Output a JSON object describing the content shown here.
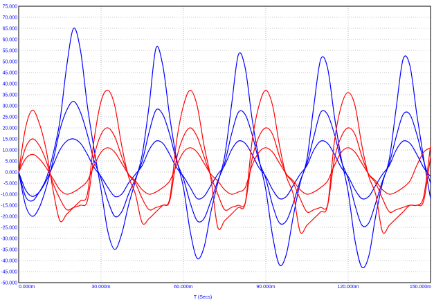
{
  "chart_data": {
    "type": "line",
    "xlabel": "T (Secs)",
    "ylabel": "",
    "xlim": [
      0,
      150
    ],
    "ylim": [
      -50,
      75
    ],
    "x_ticks": [
      "0.000m",
      "30.000m",
      "60.000m",
      "90.000m",
      "120.000m",
      "150.000m"
    ],
    "y_ticks": [
      "75.000",
      "70.000",
      "65.000",
      "60.000",
      "55.000",
      "50.000",
      "45.000",
      "40.000",
      "35.000",
      "30.000",
      "25.000",
      "20.000",
      "15.000",
      "10.000",
      "5.000",
      "0.000",
      "-5.000",
      "-10.000",
      "-15.000",
      "-20.000",
      "-25.000",
      "-30.000",
      "-35.000",
      "-40.000",
      "-45.000",
      "-50.000"
    ],
    "grid": true,
    "colors": {
      "blue": "#0000ff",
      "red": "#ff0000",
      "grid": "#888888",
      "axis": "#0000ff"
    },
    "series": [
      {
        "color": "#0000ff",
        "x": [
          0,
          2.5,
          5,
          7.5,
          10,
          12.5,
          15,
          17.5,
          20,
          22.5,
          25,
          27.5,
          30,
          32.5,
          35,
          37.5,
          40,
          42.5,
          45,
          47.5,
          50,
          52.5,
          55,
          57.5,
          60,
          62.5,
          65,
          67.5,
          70,
          72.5,
          75,
          77.5,
          80,
          82.5,
          85,
          87.5,
          90,
          92.5,
          95,
          97.5,
          100,
          102.5,
          105,
          107.5,
          110,
          112.5,
          115,
          117.5,
          120,
          122.5,
          125,
          127.5,
          130,
          132.5,
          135,
          137.5,
          140,
          142.5,
          145,
          147.5,
          150
        ],
        "y": [
          0,
          -11,
          -13,
          -9,
          -3,
          8,
          23,
          48,
          65,
          55,
          30,
          10,
          -8,
          -27,
          -35,
          -28,
          -15,
          -4,
          8,
          30,
          56,
          48,
          25,
          6,
          -7,
          -27,
          -39,
          -34,
          -18,
          -5,
          7,
          30,
          53,
          47,
          24,
          6,
          -8,
          -29,
          -42,
          -37,
          -20,
          -5,
          6,
          30,
          51,
          47,
          25,
          6,
          -9,
          -31,
          -43,
          -38,
          -20,
          -5,
          6,
          29,
          51,
          48,
          26,
          6,
          -12
        ]
      },
      {
        "color": "#0000ff",
        "x": [
          0,
          2.5,
          5,
          7.5,
          10,
          12.5,
          15,
          17.5,
          20,
          22.5,
          25,
          27.5,
          30,
          32.5,
          35,
          37.5,
          40,
          42.5,
          45,
          47.5,
          50,
          52.5,
          55,
          57.5,
          60,
          62.5,
          65,
          67.5,
          70,
          72.5,
          75,
          77.5,
          80,
          82.5,
          85,
          87.5,
          90,
          92.5,
          95,
          97.5,
          100,
          102.5,
          105,
          107.5,
          110,
          112.5,
          115,
          117.5,
          120,
          122.5,
          125,
          127.5,
          130,
          132.5,
          135,
          137.5,
          140,
          142.5,
          145,
          147.5,
          150
        ],
        "y": [
          0,
          -15,
          -20,
          -16,
          -7,
          5,
          19,
          28,
          32,
          27,
          17,
          5,
          -3,
          -13,
          -20,
          -18,
          -10,
          -3,
          5,
          18,
          28,
          26,
          17,
          5,
          -3,
          -14,
          -22,
          -21,
          -13,
          -4,
          4,
          17,
          27,
          26,
          17,
          5,
          -3,
          -15,
          -23,
          -22,
          -14,
          -4,
          4,
          16,
          27,
          26,
          17,
          5,
          -3,
          -15,
          -24,
          -23,
          -14,
          -4,
          4,
          16,
          26,
          26,
          17,
          5,
          -5
        ]
      },
      {
        "color": "#0000ff",
        "x": [
          0,
          2.5,
          5,
          7.5,
          10,
          12.5,
          15,
          17.5,
          20,
          22.5,
          25,
          27.5,
          30,
          32.5,
          35,
          37.5,
          40,
          42.5,
          45,
          47.5,
          50,
          52.5,
          55,
          57.5,
          60,
          62.5,
          65,
          67.5,
          70,
          72.5,
          75,
          77.5,
          80,
          82.5,
          85,
          87.5,
          90,
          92.5,
          95,
          97.5,
          100,
          102.5,
          105,
          107.5,
          110,
          112.5,
          115,
          117.5,
          120,
          122.5,
          125,
          127.5,
          130,
          132.5,
          135,
          137.5,
          140,
          142.5,
          145,
          147.5,
          150
        ],
        "y": [
          0,
          -8,
          -11,
          -9,
          -4,
          3,
          10,
          14,
          15,
          13,
          8,
          2,
          -2,
          -7,
          -11,
          -10,
          -5,
          -1,
          3,
          10,
          14,
          13,
          8,
          2,
          -2,
          -7,
          -12,
          -11,
          -6,
          -1,
          3,
          10,
          14,
          13,
          8,
          2,
          -2,
          -8,
          -12,
          -11,
          -6,
          -1,
          3,
          10,
          14,
          13,
          8,
          2,
          -2,
          -8,
          -12,
          -11,
          -6,
          -1,
          3,
          10,
          14,
          13,
          8,
          2,
          -2
        ]
      },
      {
        "color": "#ff0000",
        "x": [
          0,
          2.5,
          5,
          7.5,
          10,
          12.5,
          15,
          17.5,
          20,
          22.5,
          25,
          27.5,
          30,
          32.5,
          35,
          37.5,
          40,
          42.5,
          45,
          47.5,
          50,
          52.5,
          55,
          57.5,
          60,
          62.5,
          65,
          67.5,
          70,
          72.5,
          75,
          77.5,
          80,
          82.5,
          85,
          87.5,
          90,
          92.5,
          95,
          97.5,
          100,
          102.5,
          105,
          107.5,
          110,
          112.5,
          115,
          117.5,
          120,
          122.5,
          125,
          127.5,
          130,
          132.5,
          135,
          137.5,
          140,
          142.5,
          145,
          147.5,
          150
        ],
        "y": [
          0,
          20,
          28,
          22,
          10,
          -8,
          -22,
          -19,
          -16,
          -13,
          -10,
          15,
          32,
          37,
          30,
          12,
          -2,
          -10,
          -23,
          -21,
          -18,
          -15,
          -12,
          14,
          30,
          37,
          30,
          12,
          -3,
          -25,
          -22,
          -19,
          -16,
          -14,
          14,
          30,
          37,
          30,
          12,
          -2,
          -10,
          -27,
          -24,
          -21,
          -18,
          -15,
          14,
          30,
          36,
          30,
          12,
          -2,
          -10,
          -27,
          -24,
          -21,
          -18,
          -15,
          -15,
          -11,
          12
        ]
      },
      {
        "color": "#ff0000",
        "x": [
          0,
          2.5,
          5,
          7.5,
          10,
          12.5,
          15,
          17.5,
          20,
          22.5,
          25,
          27.5,
          30,
          32.5,
          35,
          37.5,
          40,
          42.5,
          45,
          47.5,
          50,
          52.5,
          55,
          57.5,
          60,
          62.5,
          65,
          67.5,
          70,
          72.5,
          75,
          77.5,
          80,
          82.5,
          85,
          87.5,
          90,
          92.5,
          95,
          97.5,
          100,
          102.5,
          105,
          107.5,
          110,
          112.5,
          115,
          117.5,
          120,
          122.5,
          125,
          127.5,
          130,
          132.5,
          135,
          137.5,
          140,
          142.5,
          145,
          147.5,
          150
        ],
        "y": [
          0,
          11,
          15,
          12,
          5,
          -5,
          -12,
          -17,
          -16,
          -15,
          -13,
          7,
          17,
          20,
          16,
          7,
          -1,
          -5,
          -12,
          -17,
          -16,
          -15,
          -13,
          6,
          16,
          20,
          16,
          7,
          -2,
          -10,
          -17,
          -16,
          -15,
          -14,
          6,
          16,
          20,
          17,
          7,
          -1,
          -5,
          -12,
          -18,
          -17,
          -16,
          -15,
          6,
          16,
          20,
          17,
          7,
          -1,
          -5,
          -12,
          -18,
          -17,
          -16,
          -15,
          -15,
          -13,
          7
        ]
      },
      {
        "color": "#ff0000",
        "x": [
          0,
          2.5,
          5,
          7.5,
          10,
          12.5,
          15,
          17.5,
          20,
          22.5,
          25,
          27.5,
          30,
          32.5,
          35,
          37.5,
          40,
          42.5,
          45,
          47.5,
          50,
          52.5,
          55,
          57.5,
          60,
          62.5,
          65,
          67.5,
          70,
          72.5,
          75,
          77.5,
          80,
          82.5,
          85,
          87.5,
          90,
          92.5,
          95,
          97.5,
          100,
          102.5,
          105,
          107.5,
          110,
          112.5,
          115,
          117.5,
          120,
          122.5,
          125,
          127.5,
          130,
          132.5,
          135,
          137.5,
          140,
          142.5,
          145,
          147.5,
          150
        ],
        "y": [
          0,
          6,
          8,
          6,
          2,
          -3,
          -8,
          -10,
          -9,
          -7,
          -4,
          3,
          9,
          11,
          9,
          4,
          -1,
          -4,
          -8,
          -10,
          -9,
          -7,
          -4,
          3,
          9,
          11,
          9,
          4,
          -1,
          -4,
          -8,
          -10,
          -9,
          -7,
          3,
          9,
          11,
          9,
          4,
          -1,
          -4,
          -8,
          -10,
          -9,
          -7,
          -4,
          3,
          9,
          11,
          9,
          4,
          -1,
          -4,
          -8,
          -10,
          -9,
          -7,
          -4,
          3,
          9,
          11
        ]
      }
    ]
  }
}
